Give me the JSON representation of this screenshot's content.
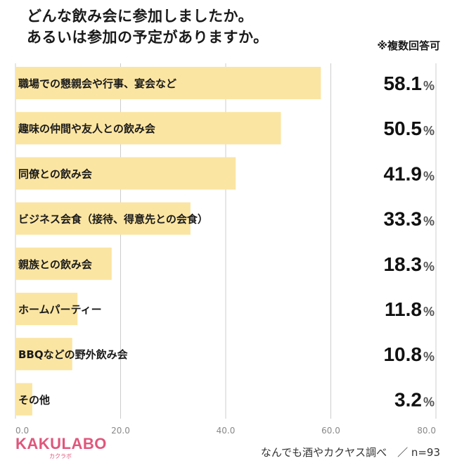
{
  "header": {
    "title_line1": "どんな飲み会に参加しましたか。",
    "title_line2": "あるいは参加の予定がありますか。",
    "note": "※複数回答可"
  },
  "chart_data": {
    "type": "bar",
    "orientation": "horizontal",
    "categories": [
      "職場での懇親会や行事、宴会など",
      "趣味の仲間や友人との飲み会",
      "同僚との飲み会",
      "ビジネス会食（接待、得意先との会食）",
      "親族との飲み会",
      "ホームパーティー",
      "BBQなどの野外飲み会",
      "その他"
    ],
    "values": [
      58.1,
      50.5,
      41.9,
      33.3,
      18.3,
      11.8,
      10.8,
      3.2
    ],
    "value_labels": [
      "58.1",
      "50.5",
      "41.9",
      "33.3",
      "18.3",
      "11.8",
      "10.8",
      "3.2"
    ],
    "unit": "%",
    "xlim": [
      0,
      80
    ],
    "x_ticks": [
      "0.0",
      "20.0",
      "40.0",
      "60.0",
      "80.0"
    ],
    "grid": true,
    "colors": {
      "bar": "#fbe5a2",
      "grid": "#cccccc",
      "value_text": "#111111",
      "unit_text": "#555555"
    }
  },
  "footer": {
    "logo": "KAKULABO",
    "logo_sub": "カクラボ",
    "source": "なんでも酒やカクヤス調べ　／ n=93",
    "logo_color": "#e0567c"
  }
}
